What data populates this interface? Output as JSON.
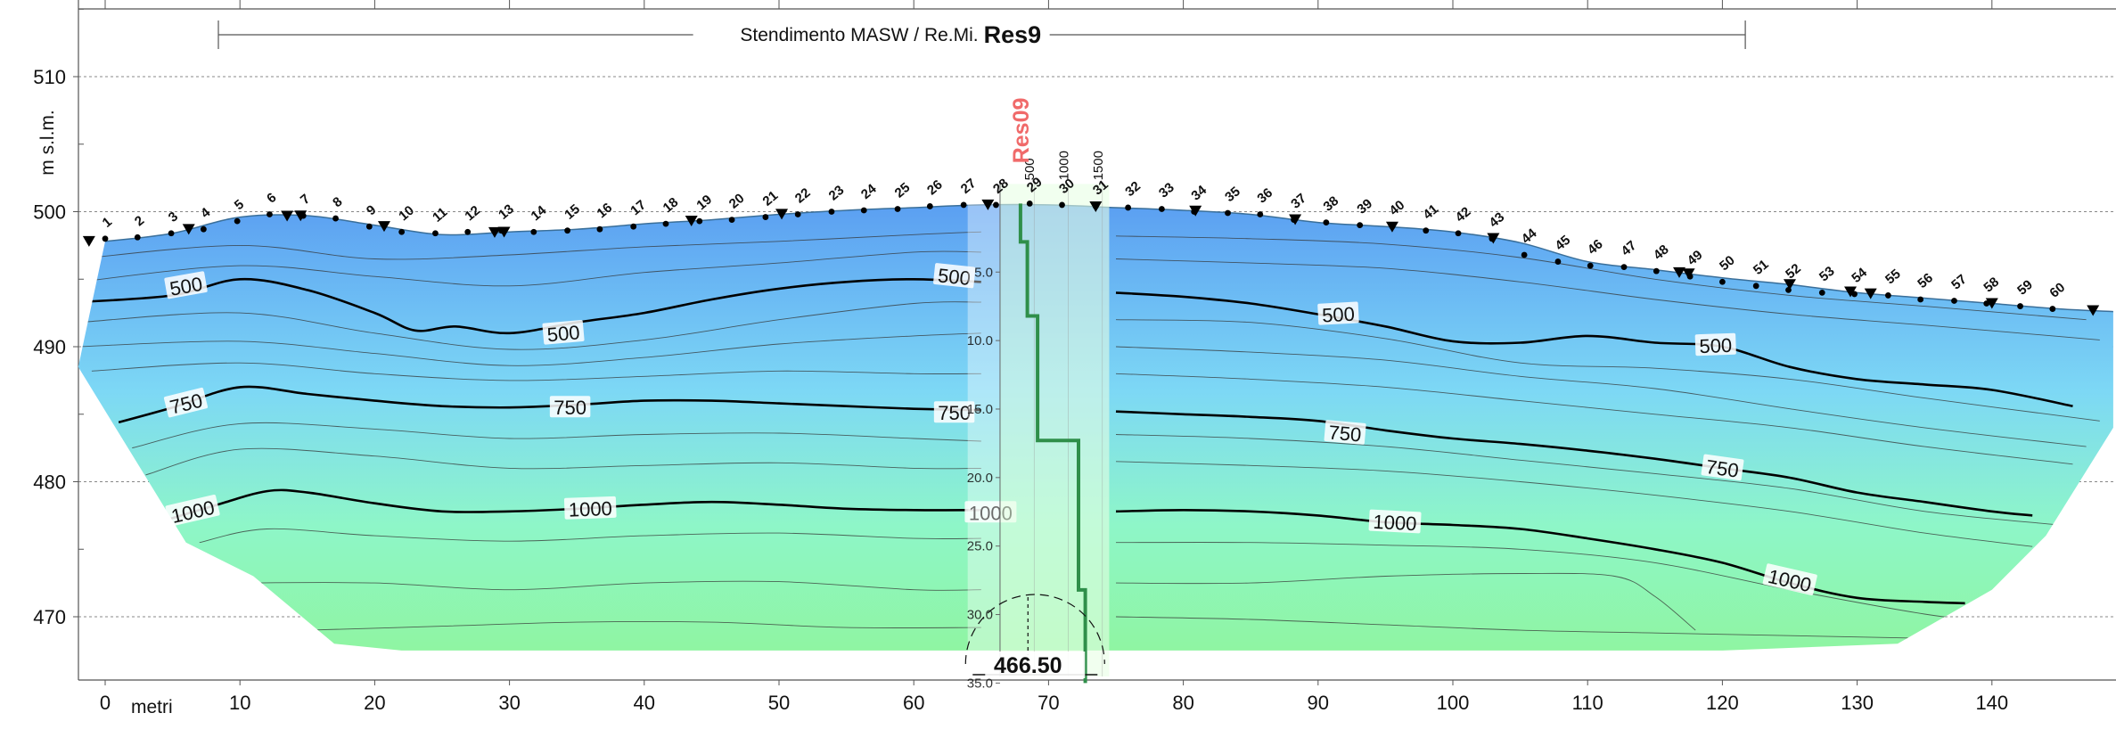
{
  "chart_data": {
    "type": "heatmap",
    "title": "Stendimento MASW / Re.Mi.",
    "title_code": "Res9",
    "xlabel": "metri",
    "ylabel": "m s.l.m.",
    "x_ticks": [
      0,
      10,
      20,
      30,
      40,
      50,
      60,
      70,
      80,
      90,
      100,
      110,
      120,
      130,
      140
    ],
    "y_ticks": [
      470,
      480,
      490,
      500,
      510
    ],
    "xlim": [
      -2,
      149
    ],
    "ylim": [
      465,
      515
    ],
    "grid": true,
    "colormap": [
      "#5b9ff2",
      "#7dd8f5",
      "#8ef6c8",
      "#8ff5a2"
    ],
    "survey_line": {
      "x_start": 8.4,
      "x_end": 121.7
    },
    "surface": {
      "x": [
        0,
        5,
        10,
        15,
        20,
        25,
        30,
        35,
        40,
        45,
        50,
        55,
        60,
        65,
        70,
        75,
        80,
        85,
        90,
        95,
        100,
        105,
        110,
        115,
        120,
        125,
        130,
        135,
        140,
        145,
        149
      ],
      "y": [
        497.8,
        498.4,
        499.6,
        499.7,
        499.0,
        498.3,
        498.5,
        498.7,
        499.1,
        499.4,
        499.8,
        500.1,
        500.3,
        500.5,
        500.5,
        500.3,
        500.1,
        499.8,
        499.2,
        498.9,
        498.5,
        497.7,
        496.3,
        495.7,
        495.1,
        494.6,
        494.0,
        493.6,
        493.2,
        492.8,
        492.6
      ]
    },
    "section_bottom": {
      "x": [
        -2,
        6,
        11,
        17,
        22,
        120,
        133,
        140,
        144,
        149
      ],
      "y": [
        488.5,
        475.5,
        473,
        468,
        467.5,
        467.5,
        468,
        472,
        476,
        484
      ]
    },
    "geophones": [
      {
        "n": "1",
        "x": 0.0,
        "y": 498.0
      },
      {
        "n": "2",
        "x": 2.4,
        "y": 498.1
      },
      {
        "n": "3",
        "x": 4.9,
        "y": 498.4
      },
      {
        "n": "4",
        "x": 7.3,
        "y": 498.7
      },
      {
        "n": "5",
        "x": 9.8,
        "y": 499.3
      },
      {
        "n": "6",
        "x": 12.2,
        "y": 499.8
      },
      {
        "n": "7",
        "x": 14.7,
        "y": 499.7
      },
      {
        "n": "8",
        "x": 17.1,
        "y": 499.5
      },
      {
        "n": "9",
        "x": 19.6,
        "y": 498.9
      },
      {
        "n": "10",
        "x": 22.0,
        "y": 498.5
      },
      {
        "n": "11",
        "x": 24.5,
        "y": 498.4
      },
      {
        "n": "12",
        "x": 26.9,
        "y": 498.5
      },
      {
        "n": "13",
        "x": 29.4,
        "y": 498.6
      },
      {
        "n": "14",
        "x": 31.8,
        "y": 498.5
      },
      {
        "n": "15",
        "x": 34.3,
        "y": 498.6
      },
      {
        "n": "16",
        "x": 36.7,
        "y": 498.7
      },
      {
        "n": "17",
        "x": 39.2,
        "y": 498.9
      },
      {
        "n": "18",
        "x": 41.6,
        "y": 499.1
      },
      {
        "n": "19",
        "x": 44.1,
        "y": 499.3
      },
      {
        "n": "20",
        "x": 46.5,
        "y": 499.4
      },
      {
        "n": "21",
        "x": 49.0,
        "y": 499.6
      },
      {
        "n": "22",
        "x": 51.4,
        "y": 499.8
      },
      {
        "n": "23",
        "x": 53.9,
        "y": 500.0
      },
      {
        "n": "24",
        "x": 56.3,
        "y": 500.1
      },
      {
        "n": "25",
        "x": 58.8,
        "y": 500.2
      },
      {
        "n": "26",
        "x": 61.2,
        "y": 500.4
      },
      {
        "n": "27",
        "x": 63.7,
        "y": 500.5
      },
      {
        "n": "28",
        "x": 66.1,
        "y": 500.5
      },
      {
        "n": "29",
        "x": 68.6,
        "y": 500.6
      },
      {
        "n": "30",
        "x": 71.0,
        "y": 500.5
      },
      {
        "n": "31",
        "x": 73.5,
        "y": 500.4
      },
      {
        "n": "32",
        "x": 75.9,
        "y": 500.3
      },
      {
        "n": "33",
        "x": 78.4,
        "y": 500.2
      },
      {
        "n": "34",
        "x": 80.8,
        "y": 500.0
      },
      {
        "n": "35",
        "x": 83.3,
        "y": 499.9
      },
      {
        "n": "36",
        "x": 85.7,
        "y": 499.8
      },
      {
        "n": "37",
        "x": 88.2,
        "y": 499.4
      },
      {
        "n": "38",
        "x": 90.6,
        "y": 499.2
      },
      {
        "n": "39",
        "x": 93.1,
        "y": 499.0
      },
      {
        "n": "40",
        "x": 95.5,
        "y": 498.9
      },
      {
        "n": "41",
        "x": 98.0,
        "y": 498.6
      },
      {
        "n": "42",
        "x": 100.4,
        "y": 498.4
      },
      {
        "n": "43",
        "x": 102.9,
        "y": 498.0
      },
      {
        "n": "44",
        "x": 105.3,
        "y": 496.8
      },
      {
        "n": "45",
        "x": 107.8,
        "y": 496.3
      },
      {
        "n": "46",
        "x": 110.2,
        "y": 496.0
      },
      {
        "n": "47",
        "x": 112.7,
        "y": 495.9
      },
      {
        "n": "48",
        "x": 115.1,
        "y": 495.6
      },
      {
        "n": "49",
        "x": 117.6,
        "y": 495.2
      },
      {
        "n": "50",
        "x": 120.0,
        "y": 494.8
      },
      {
        "n": "51",
        "x": 122.5,
        "y": 494.5
      },
      {
        "n": "52",
        "x": 124.9,
        "y": 494.2
      },
      {
        "n": "53",
        "x": 127.4,
        "y": 494.0
      },
      {
        "n": "54",
        "x": 129.8,
        "y": 493.9
      },
      {
        "n": "55",
        "x": 132.3,
        "y": 493.8
      },
      {
        "n": "56",
        "x": 134.7,
        "y": 493.5
      },
      {
        "n": "57",
        "x": 137.2,
        "y": 493.4
      },
      {
        "n": "58",
        "x": 139.6,
        "y": 493.2
      },
      {
        "n": "59",
        "x": 142.1,
        "y": 493.0
      },
      {
        "n": "60",
        "x": 144.5,
        "y": 492.8
      }
    ],
    "markers_x": [
      -1.2,
      6.2,
      13.5,
      14.5,
      20.7,
      28.9,
      29.6,
      43.5,
      50.2,
      65.5,
      73.5,
      80.9,
      88.3,
      95.5,
      103.0,
      116.8,
      117.5,
      125.0,
      129.5,
      131.0,
      140.0,
      147.5
    ],
    "contours": [
      {
        "label": "500",
        "bold": true,
        "segments": [
          {
            "x": [
              -2,
              5,
              10,
              15,
              20,
              23,
              26,
              30,
              35,
              40,
              45,
              50,
              55,
              60,
              65
            ],
            "y": [
              493.3,
              493.8,
              495,
              494.2,
              492.5,
              491.2,
              491.5,
              491,
              491.8,
              492.5,
              493.5,
              494.3,
              494.8,
              495.0,
              494.8
            ]
          },
          {
            "x": [
              75,
              80,
              85,
              90,
              95,
              100,
              105,
              110,
              115,
              120,
              125,
              130,
              135,
              140,
              146
            ],
            "y": [
              494.0,
              493.7,
              493.2,
              492.4,
              491.5,
              490.4,
              490.3,
              490.8,
              490.3,
              490.0,
              488.5,
              487.6,
              487.2,
              486.8,
              485.6
            ]
          }
        ]
      },
      {
        "label": "750",
        "bold": true,
        "segments": [
          {
            "x": [
              1,
              5,
              10,
              15,
              20,
              25,
              30,
              35,
              40,
              45,
              50,
              55,
              60,
              65
            ],
            "y": [
              484.4,
              485.5,
              487.0,
              486.5,
              486.0,
              485.6,
              485.5,
              485.7,
              486.0,
              486.0,
              485.8,
              485.6,
              485.4,
              485.3
            ]
          },
          {
            "x": [
              75,
              80,
              85,
              90,
              95,
              100,
              105,
              110,
              115,
              120,
              125,
              130,
              135,
              140,
              143
            ],
            "y": [
              485.2,
              485.0,
              484.8,
              484.5,
              483.8,
              483.2,
              482.8,
              482.3,
              481.7,
              481.0,
              480.3,
              479.2,
              478.5,
              477.8,
              477.5
            ]
          }
        ]
      },
      {
        "label": "1000",
        "bold": true,
        "segments": [
          {
            "x": [
              4,
              8,
              12,
              15,
              20,
              25,
              30,
              35,
              40,
              45,
              50,
              55,
              60,
              65
            ],
            "y": [
              477.0,
              478.2,
              479.3,
              479.2,
              478.4,
              477.8,
              477.8,
              478.0,
              478.3,
              478.5,
              478.3,
              478.0,
              477.9,
              477.9
            ]
          },
          {
            "x": [
              75,
              80,
              85,
              90,
              95,
              100,
              105,
              110,
              115,
              120,
              125,
              130,
              135,
              138
            ],
            "y": [
              477.8,
              477.9,
              477.8,
              477.5,
              477.0,
              476.8,
              476.5,
              475.8,
              475.0,
              474.0,
              472.5,
              471.4,
              471.1,
              471.0
            ]
          }
        ]
      }
    ],
    "thin_contours": [
      {
        "x": [
          -2,
          10,
          20,
          30,
          40,
          50,
          60,
          65
        ],
        "y": [
          496.5,
          497.5,
          496.5,
          496.8,
          497.4,
          497.8,
          498.3,
          498.5
        ]
      },
      {
        "x": [
          -2,
          10,
          20,
          30,
          40,
          50,
          60,
          65
        ],
        "y": [
          494.8,
          496.0,
          495.2,
          494.5,
          495.5,
          496.2,
          497.0,
          497.0
        ]
      },
      {
        "x": [
          -2,
          10,
          20,
          30,
          40,
          50,
          60,
          65
        ],
        "y": [
          491.8,
          492.5,
          491.0,
          489.8,
          490.5,
          492.0,
          493.2,
          493.3
        ]
      },
      {
        "x": [
          -2,
          10,
          20,
          30,
          40,
          50,
          60,
          65
        ],
        "y": [
          490.0,
          490.4,
          489.5,
          488.6,
          489.2,
          490.2,
          490.8,
          491.0
        ]
      },
      {
        "x": [
          -1,
          10,
          20,
          30,
          40,
          50,
          60,
          65
        ],
        "y": [
          488.2,
          488.8,
          488.0,
          487.5,
          487.8,
          488.2,
          488.0,
          488.0
        ]
      },
      {
        "x": [
          2,
          10,
          20,
          30,
          40,
          50,
          60,
          65
        ],
        "y": [
          482.5,
          484.3,
          483.9,
          483.2,
          483.5,
          483.6,
          483.2,
          483.0
        ]
      },
      {
        "x": [
          3,
          10,
          20,
          30,
          40,
          50,
          60,
          65
        ],
        "y": [
          480.5,
          482.4,
          481.9,
          481.0,
          481.2,
          481.4,
          481.0,
          481.0
        ]
      },
      {
        "x": [
          7,
          12,
          20,
          30,
          40,
          50,
          60,
          65
        ],
        "y": [
          475.5,
          476.5,
          476.0,
          475.6,
          476.0,
          476.2,
          475.8,
          475.8
        ]
      },
      {
        "x": [
          10,
          20,
          30,
          40,
          50,
          60,
          65
        ],
        "y": [
          472.5,
          472.5,
          472.0,
          472.5,
          472.6,
          472.0,
          472.0
        ]
      },
      {
        "x": [
          15,
          25,
          35,
          45,
          55,
          65
        ],
        "y": [
          469.0,
          469.3,
          469.6,
          469.6,
          469.2,
          469.2
        ]
      },
      {
        "x": [
          75,
          85,
          95,
          105,
          115,
          125,
          135,
          147
        ],
        "y": [
          498.2,
          498.0,
          497.6,
          496.6,
          495.0,
          493.8,
          493.0,
          492.0
        ]
      },
      {
        "x": [
          75,
          85,
          95,
          105,
          115,
          125,
          135,
          148
        ],
        "y": [
          496.5,
          496.2,
          495.8,
          494.8,
          493.5,
          492.4,
          491.6,
          490.5
        ]
      },
      {
        "x": [
          75,
          85,
          95,
          105,
          115,
          125,
          135,
          148
        ],
        "y": [
          492.0,
          491.8,
          490.6,
          488.8,
          488.4,
          487.6,
          486.2,
          484.5
        ]
      },
      {
        "x": [
          75,
          85,
          95,
          105,
          115,
          125,
          135,
          147
        ],
        "y": [
          490.0,
          489.6,
          489.0,
          487.8,
          486.9,
          485.4,
          484.0,
          482.6
        ]
      },
      {
        "x": [
          75,
          85,
          95,
          105,
          115,
          125,
          135,
          146
        ],
        "y": [
          488.0,
          487.6,
          487.0,
          486.0,
          485.0,
          484.0,
          482.6,
          481.3
        ]
      },
      {
        "x": [
          75,
          85,
          95,
          105,
          115,
          125,
          135,
          145
        ],
        "y": [
          483.5,
          483.2,
          482.6,
          481.6,
          480.6,
          479.5,
          477.8,
          476.8
        ]
      },
      {
        "x": [
          75,
          85,
          95,
          105,
          115,
          125,
          135,
          143
        ],
        "y": [
          481.5,
          481.2,
          480.8,
          480.0,
          479.0,
          477.8,
          476.2,
          475.2
        ]
      },
      {
        "x": [
          75,
          85,
          95,
          105,
          115,
          125,
          135,
          141
        ],
        "y": [
          475.5,
          475.5,
          475.3,
          475.0,
          474.0,
          472.0,
          470.2,
          469.5
        ]
      },
      {
        "x": [
          75,
          85,
          95,
          105,
          112,
          115,
          118
        ],
        "y": [
          472.5,
          472.5,
          473.0,
          473.2,
          473.0,
          471.5,
          469.0
        ]
      },
      {
        "x": [
          75,
          85,
          95,
          105,
          115,
          125,
          135
        ],
        "y": [
          470.0,
          469.8,
          469.4,
          469.0,
          468.8,
          468.6,
          468.4
        ]
      }
    ],
    "contour_labels": [
      {
        "text": "500",
        "x": 6.0,
        "y": 494.5,
        "rot": -10
      },
      {
        "text": "500",
        "x": 34.0,
        "y": 491.0,
        "rot": -5
      },
      {
        "text": "500",
        "x": 63.0,
        "y": 495.2,
        "rot": 6
      },
      {
        "text": "500",
        "x": 91.5,
        "y": 492.4,
        "rot": -3
      },
      {
        "text": "500",
        "x": 119.5,
        "y": 490.1,
        "rot": -2
      },
      {
        "text": "750",
        "x": 6.0,
        "y": 485.8,
        "rot": -14
      },
      {
        "text": "750",
        "x": 34.5,
        "y": 485.5,
        "rot": 0
      },
      {
        "text": "750",
        "x": 63.0,
        "y": 485.1,
        "rot": 0
      },
      {
        "text": "750",
        "x": 92.0,
        "y": 483.6,
        "rot": 5
      },
      {
        "text": "750",
        "x": 120.0,
        "y": 481.0,
        "rot": 8
      },
      {
        "text": "1000",
        "x": 6.5,
        "y": 477.8,
        "rot": -13
      },
      {
        "text": "1000",
        "x": 36.0,
        "y": 478.0,
        "rot": -2
      },
      {
        "text": "1000",
        "x": 65.7,
        "y": 477.7,
        "rot": 0
      },
      {
        "text": "1000",
        "x": 95.7,
        "y": 477.0,
        "rot": 3
      },
      {
        "text": "1000",
        "x": 125.0,
        "y": 472.7,
        "rot": 13
      }
    ],
    "borehole": {
      "name": "Res09",
      "x_center": 69,
      "x_left": 64,
      "x_right": 74.5,
      "top": 500.6,
      "bottom": 466.5,
      "elevation_label": "466.50",
      "depth_ticks": [
        5.0,
        10.0,
        15.0,
        20.0,
        25.0,
        30.0,
        35.0
      ],
      "velocity_ticks": [
        "500",
        "1000",
        "1500"
      ],
      "vs_profile": {
        "depth": [
          0,
          2.8,
          2.8,
          8.2,
          8.2,
          17.3,
          17.3,
          28.2,
          28.2,
          35
        ],
        "vs": [
          300,
          300,
          400,
          400,
          550,
          550,
          1150,
          1150,
          1250,
          1250
        ]
      }
    }
  }
}
